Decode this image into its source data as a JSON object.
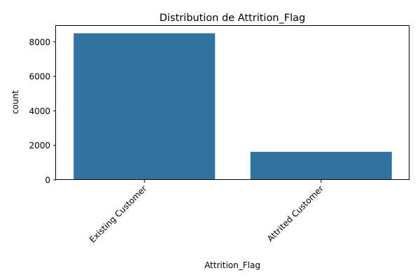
{
  "chart_data": {
    "type": "bar",
    "title": "Distribution de Attrition_Flag",
    "xlabel": "Attrition_Flag",
    "ylabel": "count",
    "categories": [
      "Existing Customer",
      "Attrited Customer"
    ],
    "values": [
      8500,
      1627
    ],
    "ylim": [
      0,
      8925
    ],
    "yticks": [
      0,
      2000,
      4000,
      6000,
      8000
    ],
    "ytick_labels": [
      "0",
      "2000",
      "4000",
      "6000",
      "8000"
    ],
    "xtick_rotation_deg": 45,
    "bar_color": "#3274a1",
    "grid": false,
    "legend": "none"
  }
}
